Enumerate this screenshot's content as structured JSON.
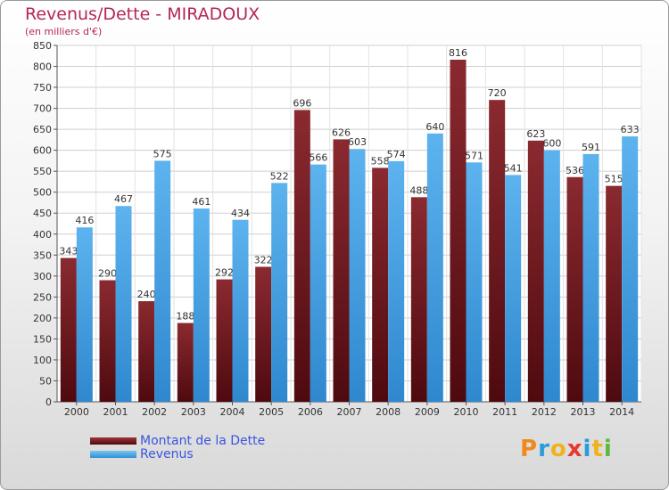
{
  "header": {
    "title": "Revenus/Dette - MIRADOUX",
    "subtitle": "(en milliers d'€)"
  },
  "chart_data": {
    "type": "bar",
    "categories": [
      "2000",
      "2001",
      "2002",
      "2003",
      "2004",
      "2005",
      "2006",
      "2007",
      "2008",
      "2009",
      "2010",
      "2011",
      "2012",
      "2013",
      "2014"
    ],
    "series": [
      {
        "name": "Montant de la Dette",
        "color": "#7a1f24",
        "values": [
          343,
          290,
          240,
          188,
          292,
          322,
          696,
          626,
          558,
          488,
          816,
          720,
          623,
          536,
          515
        ]
      },
      {
        "name": "Revenus",
        "color": "#4aa6e8",
        "values": [
          416,
          467,
          575,
          461,
          434,
          522,
          566,
          603,
          574,
          640,
          571,
          541,
          600,
          591,
          633
        ]
      }
    ],
    "ylim": [
      0,
      850
    ],
    "ytick_step": 50,
    "grid": true,
    "legend_position": "bottom-left"
  },
  "legend": {
    "items": [
      {
        "label": "Montant de la Dette",
        "color": "#7a1f24"
      },
      {
        "label": "Revenus",
        "color": "#4aa6e8"
      }
    ]
  },
  "logo": {
    "text": "Proxiti",
    "colors": [
      "#f08a1c",
      "#2a9bd8",
      "#f0b21c",
      "#e8382e",
      "#2a9bd8",
      "#f0b21c",
      "#5bb83a"
    ]
  }
}
